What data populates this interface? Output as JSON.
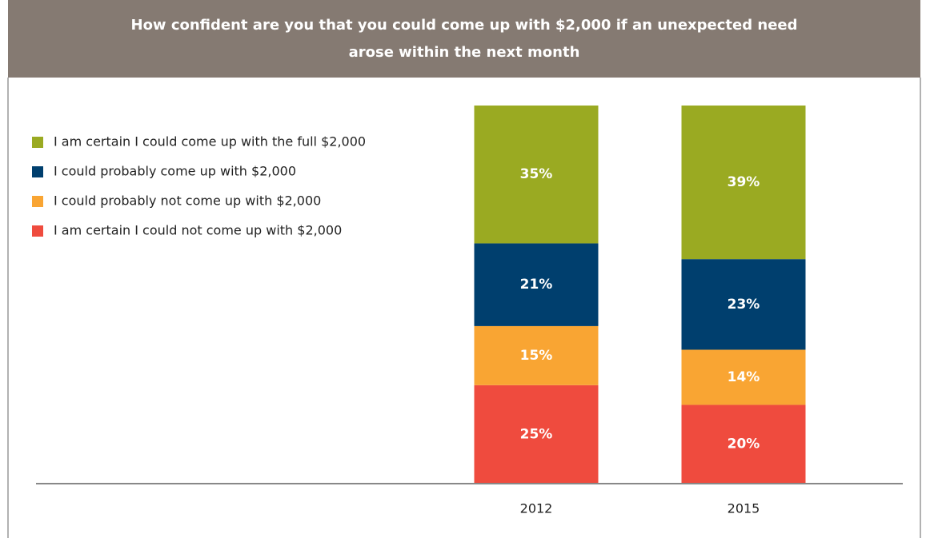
{
  "chart_data": {
    "type": "stacked_bar",
    "title": "How confident are you that you could come up with $2,000 if an unexpected need arose within the next month",
    "categories": [
      "2012",
      "2015"
    ],
    "series": [
      {
        "name": "I am certain I could come up with the full $2,000",
        "color": "#9aaa22",
        "values": [
          35,
          39
        ],
        "value_labels": [
          "35%",
          "39%"
        ]
      },
      {
        "name": "I could probably come up with $2,000",
        "color": "#003f6e",
        "values": [
          21,
          23
        ],
        "value_labels": [
          "21%",
          "23%"
        ]
      },
      {
        "name": "I could probably not come up with $2,000",
        "color": "#f9a533",
        "values": [
          15,
          14
        ],
        "value_labels": [
          "15%",
          "14%"
        ]
      },
      {
        "name": "I am certain I could not come up with $2,000",
        "color": "#ef4b3e",
        "values": [
          25,
          20
        ],
        "value_labels": [
          "25%",
          "20%"
        ]
      }
    ],
    "legend": "top-left"
  }
}
